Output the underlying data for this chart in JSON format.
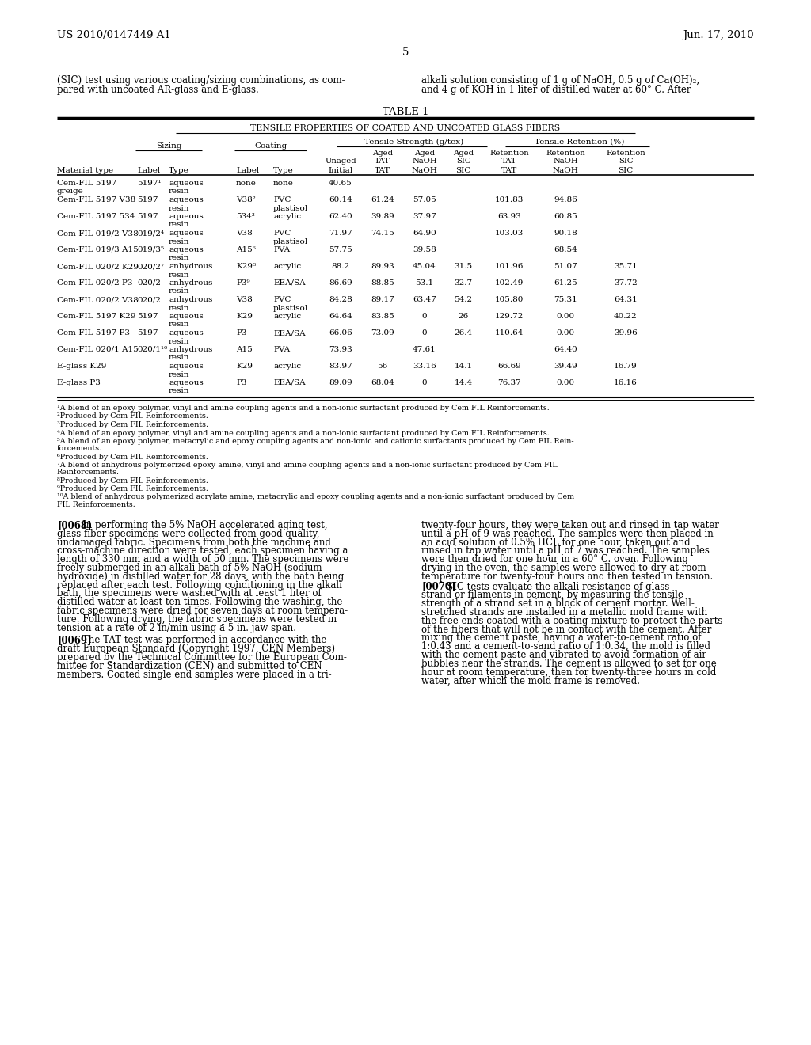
{
  "page_number": "5",
  "patent_number": "US 2010/0147449 A1",
  "patent_date": "Jun. 17, 2010",
  "background_color": "#ffffff",
  "text_color": "#000000",
  "top_left_text": "(SIC) test using various coating/sizing combinations, as com-\npared with uncoated AR-glass and E-glass.",
  "top_right_text": "alkali solution consisting of 1 g of NaOH, 0.5 g of Ca(OH)₂,\nand 4 g of KOH in 1 liter of distilled water at 60° C. After",
  "table_title": "TABLE 1",
  "table_subtitle": "TENSILE PROPERTIES OF COATED AND UNCOATED GLASS FIBERS",
  "table_rows": [
    [
      "Cem-FIL 5197\ngreige",
      "5197¹",
      "aqueous\nresin",
      "none",
      "none",
      "40.65",
      "",
      "",
      "",
      "",
      "",
      ""
    ],
    [
      "Cem-FIL 5197 V38",
      "5197",
      "aqueous\nresin",
      "V38²",
      "PVC\nplastisol",
      "60.14",
      "61.24",
      "57.05",
      "",
      "101.83",
      "94.86",
      ""
    ],
    [
      "Cem-FIL 5197 534",
      "5197",
      "aqueous\nresin",
      "534³",
      "acrylic",
      "62.40",
      "39.89",
      "37.97",
      "",
      "63.93",
      "60.85",
      ""
    ],
    [
      "Cem-FIL 019/2 V38",
      "019/2⁴",
      "aqueous\nresin",
      "V38",
      "PVC\nplastisol",
      "71.97",
      "74.15",
      "64.90",
      "",
      "103.03",
      "90.18",
      ""
    ],
    [
      "Cem-FIL 019/3 A15",
      "019/3⁵",
      "aqueous\nresin",
      "A15⁶",
      "PVA",
      "57.75",
      "",
      "39.58",
      "",
      "",
      "68.54",
      ""
    ],
    [
      "Cem-FIL 020/2 K29",
      "020/2⁷",
      "anhydrous\nresin",
      "K29⁸",
      "acrylic",
      "88.2",
      "89.93",
      "45.04",
      "31.5",
      "101.96",
      "51.07",
      "35.71"
    ],
    [
      "Cem-FIL 020/2 P3",
      "020/2",
      "anhydrous\nresin",
      "P3⁹",
      "EEA/SA",
      "86.69",
      "88.85",
      "53.1",
      "32.7",
      "102.49",
      "61.25",
      "37.72"
    ],
    [
      "Cem-FIL 020/2 V38",
      "020/2",
      "anhydrous\nresin",
      "V38",
      "PVC\nplastisol",
      "84.28",
      "89.17",
      "63.47",
      "54.2",
      "105.80",
      "75.31",
      "64.31"
    ],
    [
      "Cem-FIL 5197 K29",
      "5197",
      "aqueous\nresin",
      "K29",
      "acrylic",
      "64.64",
      "83.85",
      "0",
      "26",
      "129.72",
      "0.00",
      "40.22"
    ],
    [
      "Cem-FIL 5197 P3",
      "5197",
      "aqueous\nresin",
      "P3",
      "EEA/SA",
      "66.06",
      "73.09",
      "0",
      "26.4",
      "110.64",
      "0.00",
      "39.96"
    ],
    [
      "Cem-FIL 020/1 A15",
      "020/1¹⁰",
      "anhydrous\nresin",
      "A15",
      "PVA",
      "73.93",
      "",
      "47.61",
      "",
      "",
      "64.40",
      ""
    ],
    [
      "E-glass K29",
      "",
      "aqueous\nresin",
      "K29",
      "acrylic",
      "83.97",
      "56",
      "33.16",
      "14.1",
      "66.69",
      "39.49",
      "16.79"
    ],
    [
      "E-glass P3",
      "",
      "aqueous\nresin",
      "P3",
      "EEA/SA",
      "89.09",
      "68.04",
      "0",
      "14.4",
      "76.37",
      "0.00",
      "16.16"
    ]
  ],
  "footnotes": [
    "¹A blend of an epoxy polymer, vinyl and amine coupling agents and a non-ionic surfactant produced by Cem FIL Reinforcements.",
    "²Produced by Cem FIL Reinforcements.",
    "³Produced by Cem FIL Reinforcements.",
    "⁴A blend of an epoxy polymer, vinyl and amine coupling agents and a non-ionic surfactant produced by Cem FIL Reinforcements.",
    "⁵A blend of an epoxy polymer, metacrylic and epoxy coupling agents and non-ionic and cationic surfactants produced by Cem FIL Rein-\nforcements.",
    "⁶Produced by Cem FIL Reinforcements.",
    "⁷A blend of anhydrous polymerized epoxy amine, vinyl and amine coupling agents and a non-ionic surfactant produced by Cem FIL\nReinforcements.",
    "⁸Produced by Cem FIL Reinforcements.",
    "⁹Produced by Cem FIL Reinforcements.",
    "¹⁰A blend of anhydrous polymerized acrylate amine, metacrylic and epoxy coupling agents and a non-ionic surfactant produced by Cem\nFIL Reinforcements."
  ],
  "para_0068_left": "In performing the 5% NaOH accelerated aging test,\nglass fiber specimens were collected from good quality,\nundamaged fabric. Specimens from both the machine and\ncross-machine direction were tested, each specimen having a\nlength of 330 mm and a width of 50 mm. The specimens were\nfreely submerged in an alkali bath of 5% NaOH (sodium\nhydroxide) in distilled water for 28 days, with the bath being\nreplaced after each test. Following conditioning in the alkali\nbath, the specimens were washed with at least 1 liter of\ndistilled water at least ten times. Following the washing, the\nfabric specimens were dried for seven days at room tempera-\nture. Following drying, the fabric specimens were tested in\ntension at a rate of 2 in/min using a 5 in. jaw span.",
  "para_0069_left": "The TAT test was performed in accordance with the\ndraft European Standard (Copyright 1997, CEN Members)\nprepared by the Technical Committee for the European Com-\nmittee for Standardization (CEN) and submitted to CEN\nmembers. Coated single end samples were placed in a tri-",
  "para_right_top": "twenty-four hours, they were taken out and rinsed in tap water\nuntil a pH of 9 was reached. The samples were then placed in\nan acid solution of 0.5% HCL for one hour, taken out and\nrinsed in tap water until a pH of 7 was reached. The samples\nwere then dried for one hour in a 60° C. oven. Following\ndrying in the oven, the samples were allowed to dry at room\ntemperature for twenty-four hours and then tested in tension.",
  "para_0070_right": "SIC tests evaluate the alkali-resistance of glass\nstrand or filaments in cement, by measuring the tensile\nstrength of a strand set in a block of cement mortar. Well-\nstretched strands are installed in a metallic mold frame with\nthe free ends coated with a coating mixture to protect the parts\nof the fibers that will not be in contact with the cement. After\nmixing the cement paste, having a water-to-cement ratio of\n1:0.43 and a cement-to-sand ratio of 1:0.34, the mold is filled\nwith the cement paste and vibrated to avoid formation of air\nbubbles near the strands. The cement is allowed to set for one\nhour at room temperature, then for twenty-three hours in cold\nwater, after which the mold frame is removed."
}
